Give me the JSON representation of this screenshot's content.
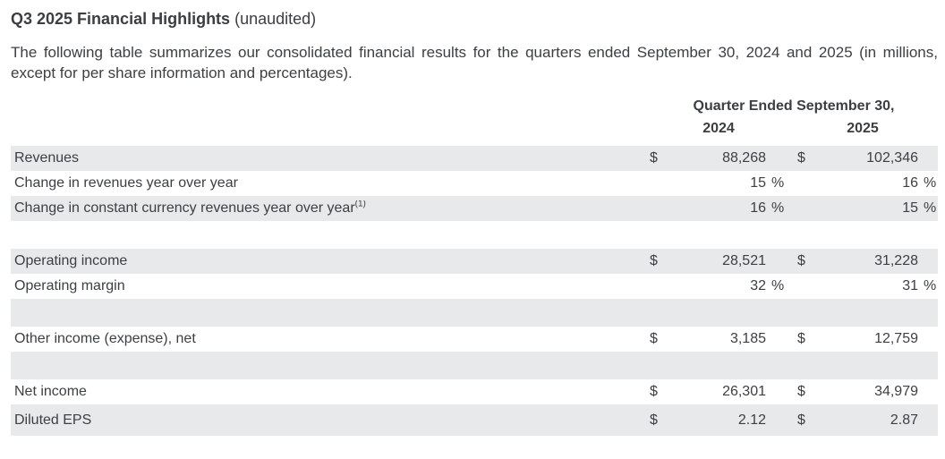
{
  "doc": {
    "title": "Q3 2025 Financial Highlights",
    "title_suffix": " (unaudited)",
    "intro": "The following table summarizes our consolidated financial results for the quarters ended September 30, 2024 and 2025 (in millions, except for per share information and percentages)."
  },
  "table": {
    "period_header": "Quarter Ended September 30,",
    "years": [
      "2024",
      "2025"
    ],
    "currency_symbol": "$",
    "percent_symbol": "%",
    "rows": [
      {
        "label": "Revenues",
        "type": "currency",
        "v2024": "88,268",
        "v2025": "102,346",
        "shaded": true
      },
      {
        "label": "Change in revenues year over year",
        "type": "percent",
        "v2024": "15",
        "v2025": "16",
        "shaded": false
      },
      {
        "label": "Change in constant currency revenues year over year",
        "sup": "(1)",
        "type": "percent",
        "v2024": "16",
        "v2025": "15",
        "shaded": true
      },
      {
        "type": "blank",
        "shaded": false
      },
      {
        "label": "Operating income",
        "type": "currency",
        "v2024": "28,521",
        "v2025": "31,228",
        "shaded": true
      },
      {
        "label": "Operating margin",
        "type": "percent",
        "v2024": "32",
        "v2025": "31",
        "shaded": false
      },
      {
        "type": "blank",
        "shaded": true
      },
      {
        "label": "Other income (expense), net",
        "type": "currency",
        "v2024": "3,185",
        "v2025": "12,759",
        "shaded": false
      },
      {
        "type": "blank",
        "shaded": true
      },
      {
        "label": "Net income",
        "type": "currency",
        "v2024": "26,301",
        "v2025": "34,979",
        "shaded": false
      },
      {
        "label": "Diluted EPS",
        "type": "currency",
        "v2024": "2.12",
        "v2025": "2.87",
        "shaded": true
      }
    ]
  },
  "colors": {
    "text": "#3d4043",
    "row_shading": "#e8e9eb",
    "background": "#ffffff"
  }
}
